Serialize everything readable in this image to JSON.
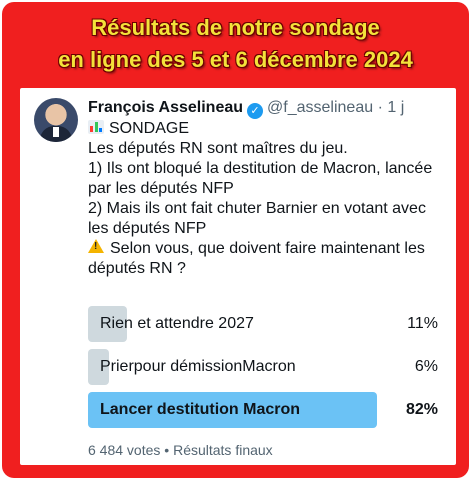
{
  "banner": {
    "line1": "Résultats de notre sondage",
    "line2": "en ligne des 5 et 6 décembre 2024"
  },
  "tweet": {
    "author_name": "François Asselineau",
    "handle": "@f_asselineau",
    "separator": "·",
    "time": "1 j",
    "lines": [
      "SONDAGE",
      "Les députés RN sont maîtres du jeu.",
      "1) Ils ont bloqué la destitution de Macron, lancée par les députés NFP",
      "2) Mais ils ont fait chuter Barnier en votant avec les députés NFP",
      "Selon vous, que doivent faire maintenant les députés RN ?"
    ],
    "poll": {
      "options": [
        {
          "label": "Rien et attendre 2027",
          "percent_label": "11%",
          "percent": 11,
          "winner": false
        },
        {
          "label": "Prierpour démissionMacron",
          "percent_label": "6%",
          "percent": 6,
          "winner": false
        },
        {
          "label": "Lancer destitution Macron",
          "percent_label": "82%",
          "percent": 82,
          "winner": true
        }
      ],
      "votes": "6 484 votes",
      "dot": "•",
      "status": "Résultats finaux"
    }
  },
  "icons": {
    "verified": "verified-badge-icon",
    "chart": "bar-chart-icon",
    "warning": "warning-icon"
  },
  "colors": {
    "frame": "#f01f1f",
    "banner_text": "#f4e23a",
    "winner_bar": "#6bc2f5",
    "other_bar": "#cfd9de",
    "verified": "#1d9bf0"
  }
}
